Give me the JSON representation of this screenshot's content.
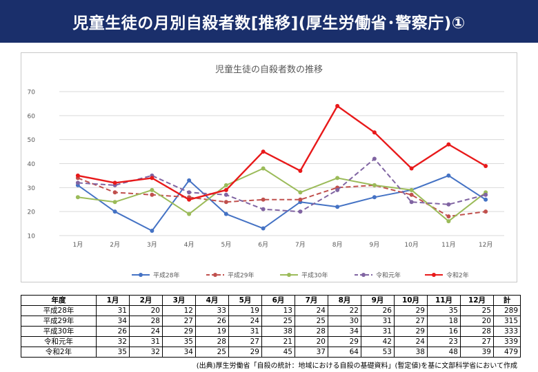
{
  "page_title": "児童生徒の月別自殺者数[推移](厚生労働省･警察庁)①",
  "source_note": "(出典)厚生労働省「自殺の統計：地域における自殺の基礎資料」(暫定値)を基に文部科学省において作成",
  "chart_data": {
    "type": "line",
    "title": "児童生徒の自殺者数の推移",
    "xlabel": "",
    "ylabel": "",
    "categories": [
      "1月",
      "2月",
      "3月",
      "4月",
      "5月",
      "6月",
      "7月",
      "8月",
      "9月",
      "10月",
      "11月",
      "12月"
    ],
    "yticks": [
      10,
      20,
      30,
      40,
      50,
      60,
      70
    ],
    "ylim": [
      10,
      70
    ],
    "grid": true,
    "legend_position": "bottom",
    "series": [
      {
        "name": "平成28年",
        "color": "#4472c4",
        "dashed": false,
        "values": [
          31,
          20,
          12,
          33,
          19,
          13,
          24,
          22,
          26,
          29,
          35,
          25
        ]
      },
      {
        "name": "平成29年",
        "color": "#c0504d",
        "dashed": true,
        "values": [
          34,
          28,
          27,
          26,
          24,
          25,
          25,
          30,
          31,
          27,
          18,
          20
        ]
      },
      {
        "name": "平成30年",
        "color": "#9bbb59",
        "dashed": false,
        "values": [
          26,
          24,
          29,
          19,
          31,
          38,
          28,
          34,
          31,
          29,
          16,
          28
        ]
      },
      {
        "name": "令和元年",
        "color": "#8064a2",
        "dashed": true,
        "values": [
          32,
          31,
          35,
          28,
          27,
          21,
          20,
          29,
          42,
          24,
          23,
          27
        ]
      },
      {
        "name": "令和2年",
        "color": "#e8191a",
        "dashed": false,
        "values": [
          35,
          32,
          34,
          25,
          29,
          45,
          37,
          64,
          53,
          38,
          48,
          39
        ]
      }
    ]
  },
  "table": {
    "headers": [
      "年度",
      "1月",
      "2月",
      "3月",
      "4月",
      "5月",
      "6月",
      "7月",
      "8月",
      "9月",
      "10月",
      "11月",
      "12月",
      "計"
    ],
    "rows": [
      {
        "label": "平成28年",
        "values": [
          31,
          20,
          12,
          33,
          19,
          13,
          24,
          22,
          26,
          29,
          35,
          25
        ],
        "total": 289
      },
      {
        "label": "平成29年",
        "values": [
          34,
          28,
          27,
          26,
          24,
          25,
          25,
          30,
          31,
          27,
          18,
          20
        ],
        "total": 315
      },
      {
        "label": "平成30年",
        "values": [
          26,
          24,
          29,
          19,
          31,
          38,
          28,
          34,
          31,
          29,
          16,
          28
        ],
        "total": 333
      },
      {
        "label": "令和元年",
        "values": [
          32,
          31,
          35,
          28,
          27,
          21,
          20,
          29,
          42,
          24,
          23,
          27
        ],
        "total": 339
      },
      {
        "label": "令和2年",
        "values": [
          35,
          32,
          34,
          25,
          29,
          45,
          37,
          64,
          53,
          38,
          48,
          39
        ],
        "total": 479
      }
    ]
  }
}
